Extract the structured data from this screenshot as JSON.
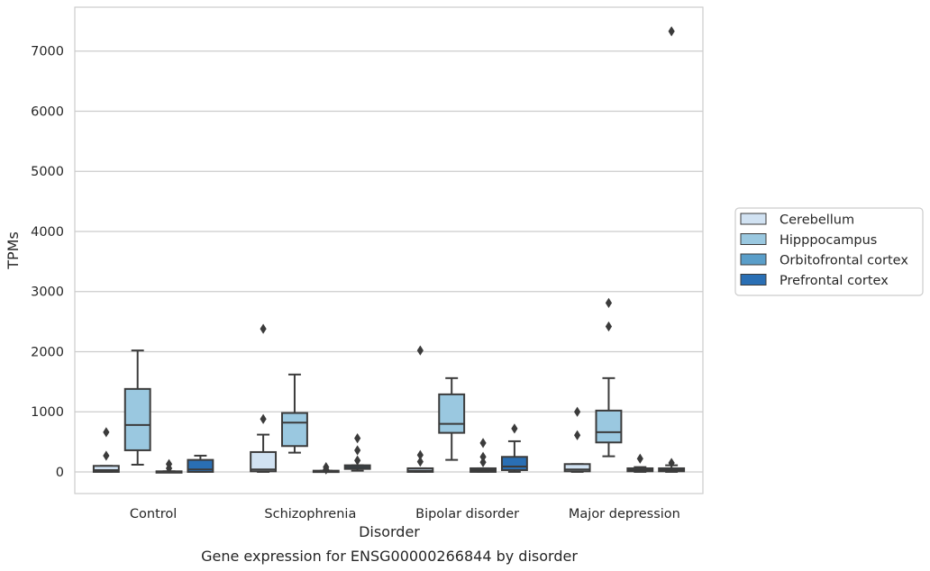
{
  "chart_data": {
    "type": "box",
    "title": "",
    "caption": "Gene expression for ENSG00000266844 by disorder",
    "xlabel": "Disorder",
    "ylabel": "TPMs",
    "ylim": [
      -360,
      7730
    ],
    "yticks": [
      0,
      1000,
      2000,
      3000,
      4000,
      5000,
      6000,
      7000
    ],
    "grid": "horizontal",
    "legend_position": "right",
    "categories": [
      "Control",
      "Schizophrenia",
      "Bipolar disorder",
      "Major depression"
    ],
    "series": [
      {
        "name": "Cerebellum",
        "color": "#d1e2f2",
        "boxes": [
          {
            "category": "Control",
            "whislo": 0,
            "q1": 0,
            "median": 30,
            "q3": 100,
            "whishi": 100,
            "fliers": [
              660,
              270
            ]
          },
          {
            "category": "Schizophrenia",
            "whislo": 0,
            "q1": 10,
            "median": 40,
            "q3": 330,
            "whishi": 620,
            "fliers": [
              2380,
              880
            ]
          },
          {
            "category": "Bipolar disorder",
            "whislo": 0,
            "q1": 0,
            "median": 20,
            "q3": 60,
            "whishi": 60,
            "fliers": [
              2020,
              280,
              170
            ]
          },
          {
            "category": "Major depression",
            "whislo": 0,
            "q1": 10,
            "median": 40,
            "q3": 130,
            "whishi": 130,
            "fliers": [
              1000,
              610
            ]
          }
        ]
      },
      {
        "name": "Hipppocampus",
        "color": "#9ac8e0",
        "boxes": [
          {
            "category": "Control",
            "whislo": 120,
            "q1": 360,
            "median": 780,
            "q3": 1380,
            "whishi": 2020,
            "fliers": []
          },
          {
            "category": "Schizophrenia",
            "whislo": 320,
            "q1": 430,
            "median": 820,
            "q3": 980,
            "whishi": 1620,
            "fliers": []
          },
          {
            "category": "Bipolar disorder",
            "whislo": 200,
            "q1": 650,
            "median": 800,
            "q3": 1290,
            "whishi": 1560,
            "fliers": []
          },
          {
            "category": "Major depression",
            "whislo": 260,
            "q1": 490,
            "median": 660,
            "q3": 1020,
            "whishi": 1560,
            "fliers": [
              2420,
              2810
            ]
          }
        ]
      },
      {
        "name": "Orbitofrontal cortex",
        "color": "#5a9ec9",
        "boxes": [
          {
            "category": "Control",
            "whislo": 0,
            "q1": 0,
            "median": 0,
            "q3": 10,
            "whishi": 10,
            "fliers": [
              130,
              60
            ]
          },
          {
            "category": "Schizophrenia",
            "whislo": 0,
            "q1": 0,
            "median": 0,
            "q3": 20,
            "whishi": 20,
            "fliers": [
              80,
              40
            ]
          },
          {
            "category": "Bipolar disorder",
            "whislo": 0,
            "q1": 0,
            "median": 30,
            "q3": 60,
            "whishi": 60,
            "fliers": [
              480,
              250,
              160
            ]
          },
          {
            "category": "Major depression",
            "whislo": 0,
            "q1": 10,
            "median": 30,
            "q3": 60,
            "whishi": 80,
            "fliers": [
              220
            ]
          }
        ]
      },
      {
        "name": "Prefrontal cortex",
        "color": "#2a6fb4",
        "boxes": [
          {
            "category": "Control",
            "whislo": 0,
            "q1": 0,
            "median": 40,
            "q3": 200,
            "whishi": 270,
            "fliers": []
          },
          {
            "category": "Schizophrenia",
            "whislo": 20,
            "q1": 50,
            "median": 80,
            "q3": 110,
            "whishi": 110,
            "fliers": [
              560,
              360,
              190
            ]
          },
          {
            "category": "Bipolar disorder",
            "whislo": 0,
            "q1": 30,
            "median": 90,
            "q3": 250,
            "whishi": 510,
            "fliers": [
              720
            ]
          },
          {
            "category": "Major depression",
            "whislo": 0,
            "q1": 10,
            "median": 30,
            "q3": 60,
            "whishi": 110,
            "fliers": [
              7330,
              150
            ]
          }
        ]
      }
    ]
  }
}
